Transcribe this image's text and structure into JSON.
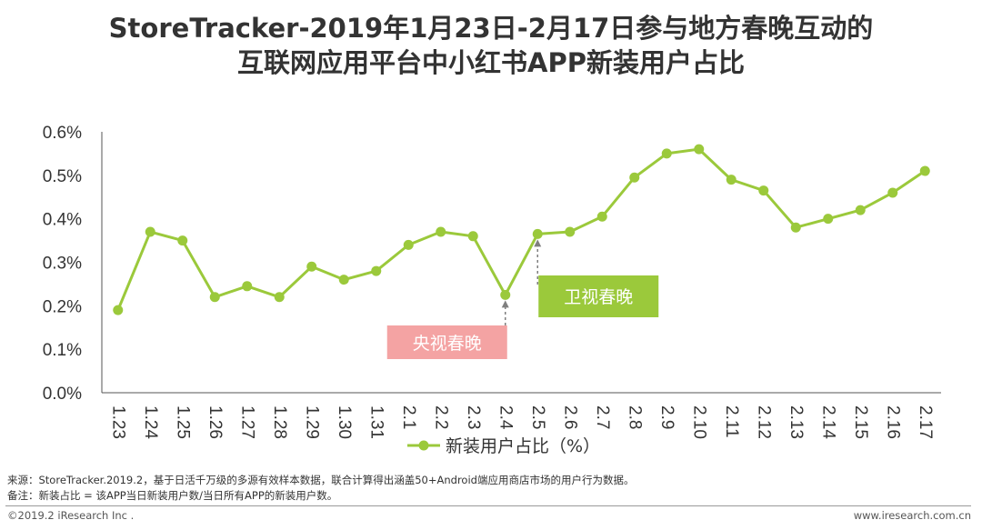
{
  "title_line1": "StoreTracker-2019年1月23日-2月17日参与地方春晚互动的",
  "title_line2": "互联网应用平台中小红书APP新装用户占比",
  "chart_data": {
    "type": "line",
    "categories": [
      "1.23",
      "1.24",
      "1.25",
      "1.26",
      "1.27",
      "1.28",
      "1.29",
      "1.30",
      "1.31",
      "2.1",
      "2.2",
      "2.3",
      "2.4",
      "2.5",
      "2.6",
      "2.7",
      "2.8",
      "2.9",
      "2.10",
      "2.11",
      "2.12",
      "2.13",
      "2.14",
      "2.15",
      "2.16",
      "2.17"
    ],
    "series": [
      {
        "name": "新装用户占比（%）",
        "values": [
          0.19,
          0.37,
          0.35,
          0.22,
          0.245,
          0.22,
          0.29,
          0.26,
          0.28,
          0.34,
          0.37,
          0.36,
          0.225,
          0.365,
          0.37,
          0.405,
          0.495,
          0.55,
          0.56,
          0.49,
          0.465,
          0.38,
          0.4,
          0.42,
          0.46,
          0.51
        ],
        "color": "#9bc93b"
      }
    ],
    "yticks": [
      "0.0%",
      "0.1%",
      "0.2%",
      "0.3%",
      "0.4%",
      "0.5%",
      "0.6%"
    ],
    "ylim": [
      0,
      0.6
    ],
    "legend": "bottom",
    "annotations": [
      {
        "text": "央视春晚",
        "category": "2.4",
        "color": "#f4a3a3"
      },
      {
        "text": "卫视春晚",
        "category": "2.5",
        "color": "#9bc93b"
      }
    ]
  },
  "notes": {
    "source": "来源：StoreTracker.2019.2，基于日活千万级的多源有效样本数据，联合计算得出涵盖50+Android端应用商店市场的用户行为数据。",
    "remark": "备注：新装占比 = 该APP当日新装用户数/当日所有APP的新装用户数。"
  },
  "footer": {
    "copyright": "©2019.2 iResearch Inc .",
    "website": "www.iresearch.com.cn"
  }
}
